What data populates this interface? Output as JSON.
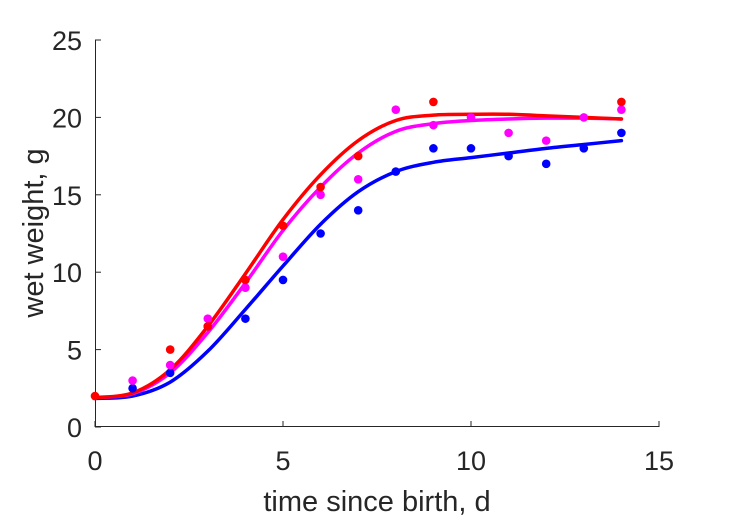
{
  "chart_data": {
    "type": "scatter",
    "xlabel": "time since birth, d",
    "ylabel": "wet weight, g",
    "xlim": [
      0,
      15
    ],
    "ylim": [
      0,
      25
    ],
    "xticks": [
      "0",
      "5",
      "10",
      "15"
    ],
    "yticks": [
      "0",
      "5",
      "10",
      "15",
      "20",
      "25"
    ],
    "grid": false,
    "legend": "none",
    "series": [
      {
        "color": "#ff0000",
        "points": {
          "x": [
            0,
            2,
            3,
            4,
            5,
            6,
            7,
            9,
            14
          ],
          "y": [
            2.0,
            5.0,
            6.5,
            9.5,
            13.0,
            15.5,
            17.5,
            21.0,
            21.0
          ]
        },
        "curve": {
          "x": [
            0,
            1,
            2,
            3,
            4,
            5,
            6,
            7,
            8,
            9,
            10,
            11,
            12,
            13,
            14
          ],
          "y": [
            1.9,
            2.2,
            3.7,
            6.5,
            9.9,
            13.4,
            16.3,
            18.5,
            19.8,
            20.15,
            20.2,
            20.2,
            20.1,
            20.0,
            19.9
          ]
        }
      },
      {
        "color": "#ff00ff",
        "points": {
          "x": [
            1,
            2,
            3,
            4,
            5,
            6,
            7,
            8,
            9,
            10,
            11,
            12,
            13,
            14
          ],
          "y": [
            3.0,
            4.0,
            7.0,
            9.0,
            11.0,
            15.0,
            16.0,
            20.5,
            19.5,
            20.0,
            19.0,
            18.5,
            20.0,
            20.5
          ]
        },
        "curve": {
          "x": [
            0,
            1,
            2,
            3,
            4,
            5,
            6,
            7,
            8,
            9,
            10,
            11,
            12,
            13,
            14
          ],
          "y": [
            1.9,
            2.15,
            3.5,
            6.1,
            9.3,
            12.7,
            15.5,
            17.7,
            19.1,
            19.6,
            19.8,
            19.9,
            19.95,
            19.95,
            19.9
          ]
        }
      },
      {
        "color": "#0000ff",
        "points": {
          "x": [
            1,
            2,
            3,
            4,
            5,
            6,
            7,
            8,
            9,
            10,
            11,
            12,
            13,
            14
          ],
          "y": [
            2.5,
            3.5,
            6.5,
            7.0,
            9.5,
            12.5,
            14.0,
            16.5,
            18.0,
            18.0,
            17.5,
            17.0,
            18.0,
            19.0
          ]
        },
        "curve": {
          "x": [
            0,
            1,
            2,
            3,
            4,
            5,
            6,
            7,
            8,
            9,
            10,
            11,
            12,
            13,
            14
          ],
          "y": [
            1.85,
            2.0,
            2.9,
            4.9,
            7.6,
            10.4,
            13.1,
            15.2,
            16.5,
            17.1,
            17.4,
            17.7,
            18.0,
            18.25,
            18.5
          ]
        }
      }
    ]
  }
}
